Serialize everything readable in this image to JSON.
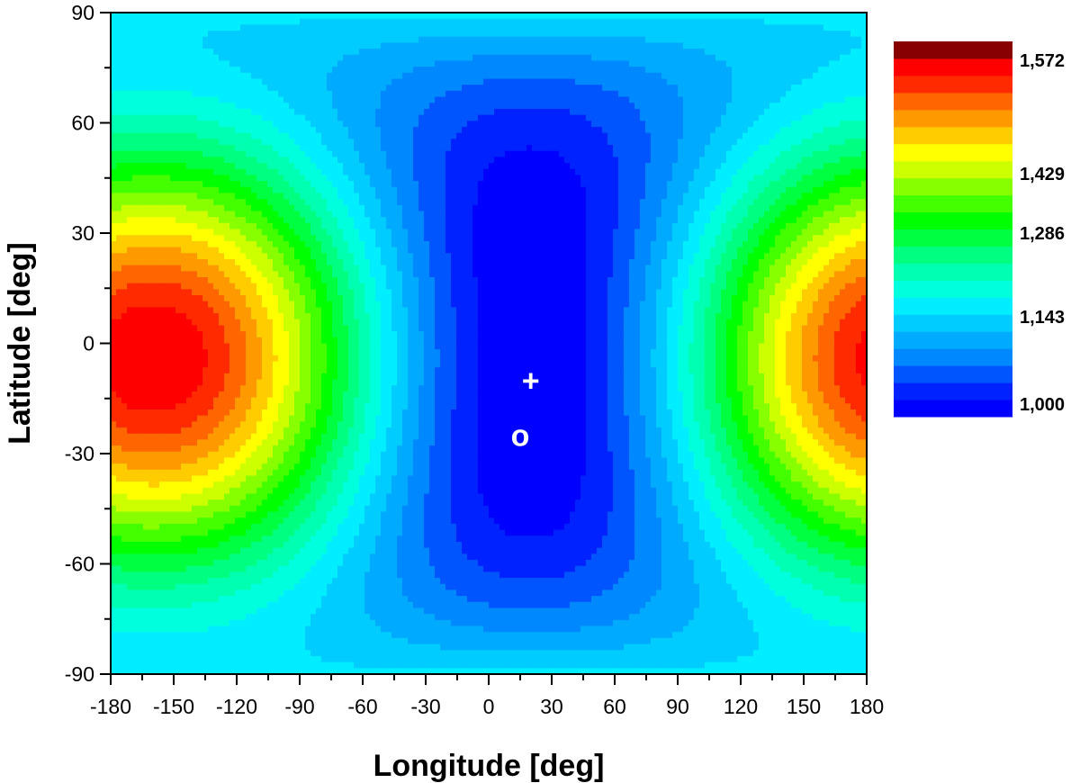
{
  "chart_data": {
    "type": "heatmap",
    "title": "",
    "xlabel": "Longitude [deg]",
    "ylabel": "Latitude [deg]",
    "xlim": [
      -180,
      180
    ],
    "ylim": [
      -90,
      90
    ],
    "x_ticks": [
      -180,
      -150,
      -120,
      -90,
      -60,
      -30,
      0,
      30,
      60,
      90,
      120,
      150,
      180
    ],
    "y_ticks": [
      90,
      60,
      30,
      0,
      -30,
      -60,
      -90
    ],
    "x_tick_labels": [
      "-180",
      "-150",
      "-120",
      "-90",
      "-60",
      "-30",
      "0",
      "30",
      "60",
      "90",
      "120",
      "150",
      "180"
    ],
    "y_tick_labels": [
      "90",
      "60",
      "30",
      "0",
      "-30",
      "-60",
      "-90"
    ],
    "field": {
      "min_location": {
        "lon": 20,
        "lat": -10
      },
      "max_location": {
        "lon": -155,
        "lat": 5
      },
      "min_value": 1.0,
      "max_value": 1.572
    },
    "levels": 20,
    "colorbar": {
      "labels": [
        "1,572",
        "1,429",
        "1,286",
        "1,143",
        "1,000"
      ],
      "colors": [
        "#0000ff",
        "#0022ff",
        "#0055ff",
        "#0088ff",
        "#00aaff",
        "#00ccff",
        "#00eeff",
        "#00ffdd",
        "#00ffb0",
        "#00ff80",
        "#00ff40",
        "#00ff00",
        "#44ff00",
        "#88ff00",
        "#ccff00",
        "#ffff00",
        "#ffcc00",
        "#ff9900",
        "#ff6600",
        "#ff2a00",
        "#ff0000",
        "#880000"
      ]
    },
    "markers": [
      {
        "symbol": "+",
        "lon": 20,
        "lat": -10
      },
      {
        "symbol": "o",
        "lon": 15,
        "lat": -25
      }
    ],
    "grid": false
  }
}
